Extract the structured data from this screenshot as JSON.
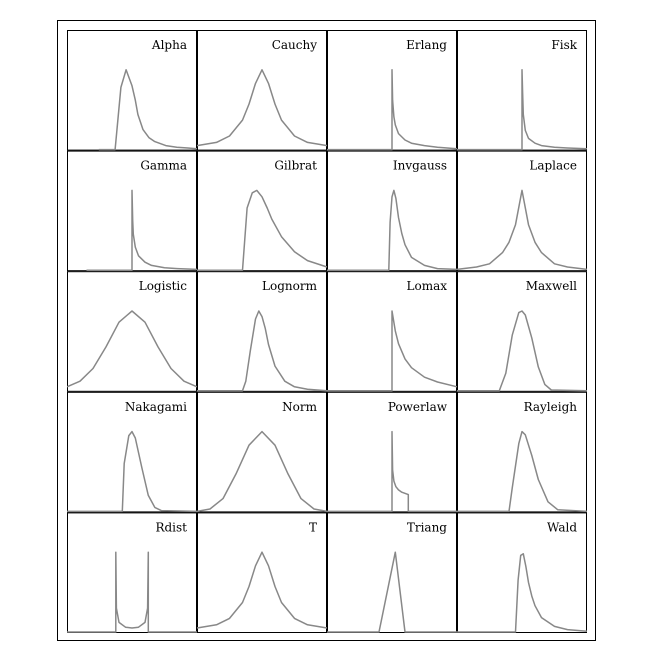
{
  "figure": {
    "line_color": "#888888",
    "border_color": "#000000",
    "grid": false,
    "axes_ticks": false
  },
  "chart_data": [
    {
      "type": "line",
      "title": "Alpha",
      "x": [
        -0.51,
        -0.35,
        -0.26,
        -0.17,
        -0.09,
        0.0,
        0.05,
        0.09,
        0.17,
        0.26,
        0.35,
        0.52,
        0.69,
        0.86,
        1.0
      ],
      "y": [
        0.0,
        0.0,
        0.0,
        0.78,
        1.0,
        0.8,
        0.62,
        0.44,
        0.25,
        0.15,
        0.1,
        0.05,
        0.03,
        0.02,
        0.01
      ]
    },
    {
      "type": "line",
      "title": "Cauchy",
      "x": [
        -1.0,
        -0.7,
        -0.5,
        -0.3,
        -0.2,
        -0.1,
        0.0,
        0.1,
        0.2,
        0.3,
        0.5,
        0.7,
        1.0
      ],
      "y": [
        0.05,
        0.09,
        0.17,
        0.37,
        0.57,
        0.83,
        1.0,
        0.83,
        0.57,
        0.37,
        0.17,
        0.09,
        0.05
      ]
    },
    {
      "type": "line",
      "title": "Erlang",
      "x": [
        -1.0,
        0.0,
        0.0,
        0.01,
        0.03,
        0.05,
        0.1,
        0.2,
        0.3,
        0.5,
        0.7,
        1.0
      ],
      "y": [
        0.0,
        0.0,
        1.0,
        0.62,
        0.41,
        0.31,
        0.2,
        0.12,
        0.08,
        0.05,
        0.03,
        0.01
      ]
    },
    {
      "type": "line",
      "title": "Fisk",
      "x": [
        -1.0,
        0.0,
        0.0,
        0.01,
        0.02,
        0.05,
        0.1,
        0.2,
        0.3,
        0.5,
        0.7,
        1.0
      ],
      "y": [
        0.0,
        0.0,
        1.0,
        0.72,
        0.44,
        0.24,
        0.14,
        0.08,
        0.05,
        0.03,
        0.02,
        0.01
      ]
    },
    {
      "type": "line",
      "title": "Gamma",
      "x": [
        -0.7,
        0.0,
        0.0,
        0.01,
        0.02,
        0.05,
        0.1,
        0.2,
        0.3,
        0.5,
        0.7,
        1.0
      ],
      "y": [
        0.0,
        0.0,
        1.0,
        0.62,
        0.45,
        0.29,
        0.18,
        0.1,
        0.06,
        0.03,
        0.02,
        0.01
      ]
    },
    {
      "type": "line",
      "title": "Gilbrat",
      "x": [
        -1.0,
        -0.3,
        -0.3,
        -0.23,
        -0.15,
        -0.08,
        0.0,
        0.08,
        0.15,
        0.3,
        0.5,
        0.7,
        1.0
      ],
      "y": [
        0.0,
        0.0,
        0.0,
        0.78,
        0.97,
        1.0,
        0.92,
        0.78,
        0.64,
        0.42,
        0.23,
        0.12,
        0.04
      ]
    },
    {
      "type": "line",
      "title": "Invgauss",
      "x": [
        -1.0,
        -0.05,
        -0.05,
        -0.03,
        0.0,
        0.03,
        0.06,
        0.1,
        0.15,
        0.2,
        0.3,
        0.5,
        0.7,
        1.0
      ],
      "y": [
        0.0,
        0.0,
        0.0,
        0.6,
        0.92,
        1.0,
        0.9,
        0.66,
        0.46,
        0.32,
        0.16,
        0.06,
        0.02,
        0.01
      ]
    },
    {
      "type": "line",
      "title": "Laplace",
      "x": [
        -1.0,
        -0.7,
        -0.5,
        -0.3,
        -0.2,
        -0.1,
        0.0,
        0.1,
        0.2,
        0.3,
        0.5,
        0.7,
        1.0
      ],
      "y": [
        0.01,
        0.04,
        0.08,
        0.22,
        0.35,
        0.57,
        1.0,
        0.57,
        0.35,
        0.22,
        0.08,
        0.04,
        0.01
      ]
    },
    {
      "type": "line",
      "title": "Logistic",
      "x": [
        -1.0,
        -0.8,
        -0.6,
        -0.4,
        -0.2,
        0.0,
        0.2,
        0.4,
        0.6,
        0.8,
        1.0
      ],
      "y": [
        0.05,
        0.12,
        0.28,
        0.55,
        0.86,
        1.0,
        0.86,
        0.55,
        0.28,
        0.12,
        0.05
      ]
    },
    {
      "type": "line",
      "title": "Lognorm",
      "x": [
        -1.0,
        -0.3,
        -0.3,
        -0.25,
        -0.18,
        -0.1,
        -0.05,
        0.0,
        0.05,
        0.1,
        0.2,
        0.35,
        0.5,
        0.7,
        1.0
      ],
      "y": [
        0.0,
        0.0,
        0.0,
        0.12,
        0.5,
        0.9,
        1.0,
        0.93,
        0.78,
        0.58,
        0.31,
        0.12,
        0.05,
        0.02,
        0.0
      ]
    },
    {
      "type": "line",
      "title": "Lomax",
      "x": [
        -1.0,
        0.0,
        0.0,
        0.05,
        0.1,
        0.2,
        0.3,
        0.5,
        0.7,
        1.0
      ],
      "y": [
        0.0,
        0.0,
        1.0,
        0.75,
        0.59,
        0.4,
        0.29,
        0.17,
        0.11,
        0.05
      ]
    },
    {
      "type": "line",
      "title": "Maxwell",
      "x": [
        -1.0,
        -0.35,
        -0.35,
        -0.25,
        -0.15,
        -0.05,
        0.0,
        0.05,
        0.15,
        0.25,
        0.35,
        0.45,
        1.0
      ],
      "y": [
        0.0,
        0.0,
        0.0,
        0.22,
        0.7,
        0.98,
        1.0,
        0.95,
        0.66,
        0.3,
        0.08,
        0.01,
        0.0
      ]
    },
    {
      "type": "line",
      "title": "Nakagami",
      "x": [
        -1.0,
        -0.15,
        -0.15,
        -0.12,
        -0.05,
        0.0,
        0.05,
        0.15,
        0.25,
        0.35,
        0.45,
        1.0
      ],
      "y": [
        0.0,
        0.0,
        0.0,
        0.6,
        0.95,
        1.0,
        0.92,
        0.55,
        0.2,
        0.05,
        0.01,
        0.0
      ]
    },
    {
      "type": "line",
      "title": "Norm",
      "x": [
        -1.0,
        -0.8,
        -0.6,
        -0.4,
        -0.2,
        0.0,
        0.2,
        0.4,
        0.6,
        0.8,
        1.0
      ],
      "y": [
        0.0,
        0.03,
        0.16,
        0.47,
        0.83,
        1.0,
        0.83,
        0.47,
        0.16,
        0.03,
        0.0
      ]
    },
    {
      "type": "line",
      "title": "Powerlaw",
      "x": [
        -1.0,
        0.0,
        0.0,
        0.01,
        0.03,
        0.06,
        0.1,
        0.15,
        0.25,
        0.25,
        1.0
      ],
      "y": [
        0.0,
        0.0,
        1.0,
        0.52,
        0.38,
        0.31,
        0.27,
        0.24,
        0.21,
        0.0,
        0.0
      ]
    },
    {
      "type": "line",
      "title": "Rayleigh",
      "x": [
        -1.0,
        -0.2,
        -0.2,
        -0.15,
        -0.05,
        0.0,
        0.05,
        0.15,
        0.25,
        0.4,
        0.55,
        1.0
      ],
      "y": [
        0.0,
        0.0,
        0.0,
        0.3,
        0.85,
        1.0,
        0.96,
        0.7,
        0.4,
        0.12,
        0.02,
        0.0
      ]
    },
    {
      "type": "line",
      "title": "Rdist",
      "x": [
        -1.0,
        -0.25,
        -0.25,
        -0.24,
        -0.2,
        -0.1,
        0.0,
        0.1,
        0.2,
        0.24,
        0.25,
        0.25,
        1.0
      ],
      "y": [
        0.0,
        0.0,
        1.0,
        0.3,
        0.12,
        0.06,
        0.05,
        0.06,
        0.12,
        0.3,
        1.0,
        0.0,
        0.0
      ]
    },
    {
      "type": "line",
      "title": "T",
      "x": [
        -1.0,
        -0.7,
        -0.5,
        -0.3,
        -0.2,
        -0.1,
        0.0,
        0.1,
        0.2,
        0.3,
        0.5,
        0.7,
        1.0
      ],
      "y": [
        0.05,
        0.09,
        0.17,
        0.37,
        0.57,
        0.83,
        1.0,
        0.83,
        0.57,
        0.37,
        0.17,
        0.09,
        0.05
      ]
    },
    {
      "type": "line",
      "title": "Triang",
      "x": [
        -1.0,
        -0.2,
        0.05,
        0.2,
        1.0
      ],
      "y": [
        0.0,
        0.0,
        1.0,
        0.0,
        0.0
      ]
    },
    {
      "type": "line",
      "title": "Wald",
      "x": [
        -1.0,
        -0.1,
        -0.1,
        -0.06,
        -0.02,
        0.02,
        0.06,
        0.1,
        0.15,
        0.2,
        0.3,
        0.5,
        0.7,
        1.0
      ],
      "y": [
        0.0,
        0.0,
        0.0,
        0.65,
        0.96,
        0.98,
        0.82,
        0.62,
        0.45,
        0.33,
        0.18,
        0.07,
        0.03,
        0.01
      ]
    }
  ]
}
